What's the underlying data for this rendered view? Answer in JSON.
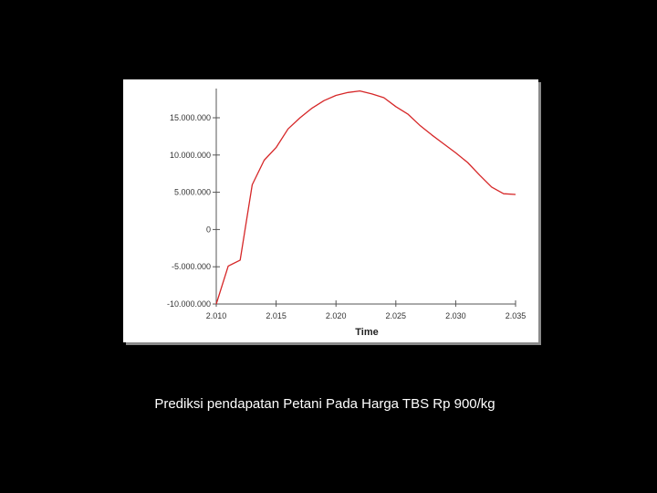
{
  "caption": "Prediksi pendapatan Petani Pada Harga TBS Rp 900/kg",
  "chart_data": {
    "type": "line",
    "title": "",
    "xlabel": "Time",
    "ylabel": "",
    "xlim": [
      2010,
      2035
    ],
    "ylim": [
      -10000000,
      18000000
    ],
    "grid": false,
    "line_color": "#d62728",
    "x_ticks": [
      2010,
      2015,
      2020,
      2025,
      2030,
      2035
    ],
    "x_tick_labels": [
      "2.010",
      "2.015",
      "2.020",
      "2.025",
      "2.030",
      "2.035"
    ],
    "y_ticks": [
      -10000000,
      -5000000,
      0,
      5000000,
      10000000,
      15000000
    ],
    "y_tick_labels": [
      "-10.000.000",
      "-5.000.000",
      "0",
      "5.000.000",
      "10.000.000",
      "15.000.000"
    ],
    "series": [
      {
        "x": [
          2010,
          2011,
          2012,
          2013,
          2014,
          2015,
          2016,
          2017,
          2018,
          2019,
          2020,
          2021,
          2022,
          2023,
          2024,
          2025,
          2026,
          2027,
          2028,
          2029,
          2030,
          2031,
          2032,
          2033,
          2034,
          2035
        ],
        "values": [
          -10000000,
          -4900000,
          -4100000,
          6000000,
          9300000,
          11000000,
          13500000,
          15000000,
          16300000,
          17300000,
          18000000,
          18400000,
          18600000,
          18200000,
          17700000,
          16500000,
          15500000,
          14000000,
          12700000,
          11500000,
          10300000,
          9000000,
          7300000,
          5700000,
          4800000,
          4700000
        ]
      }
    ]
  }
}
